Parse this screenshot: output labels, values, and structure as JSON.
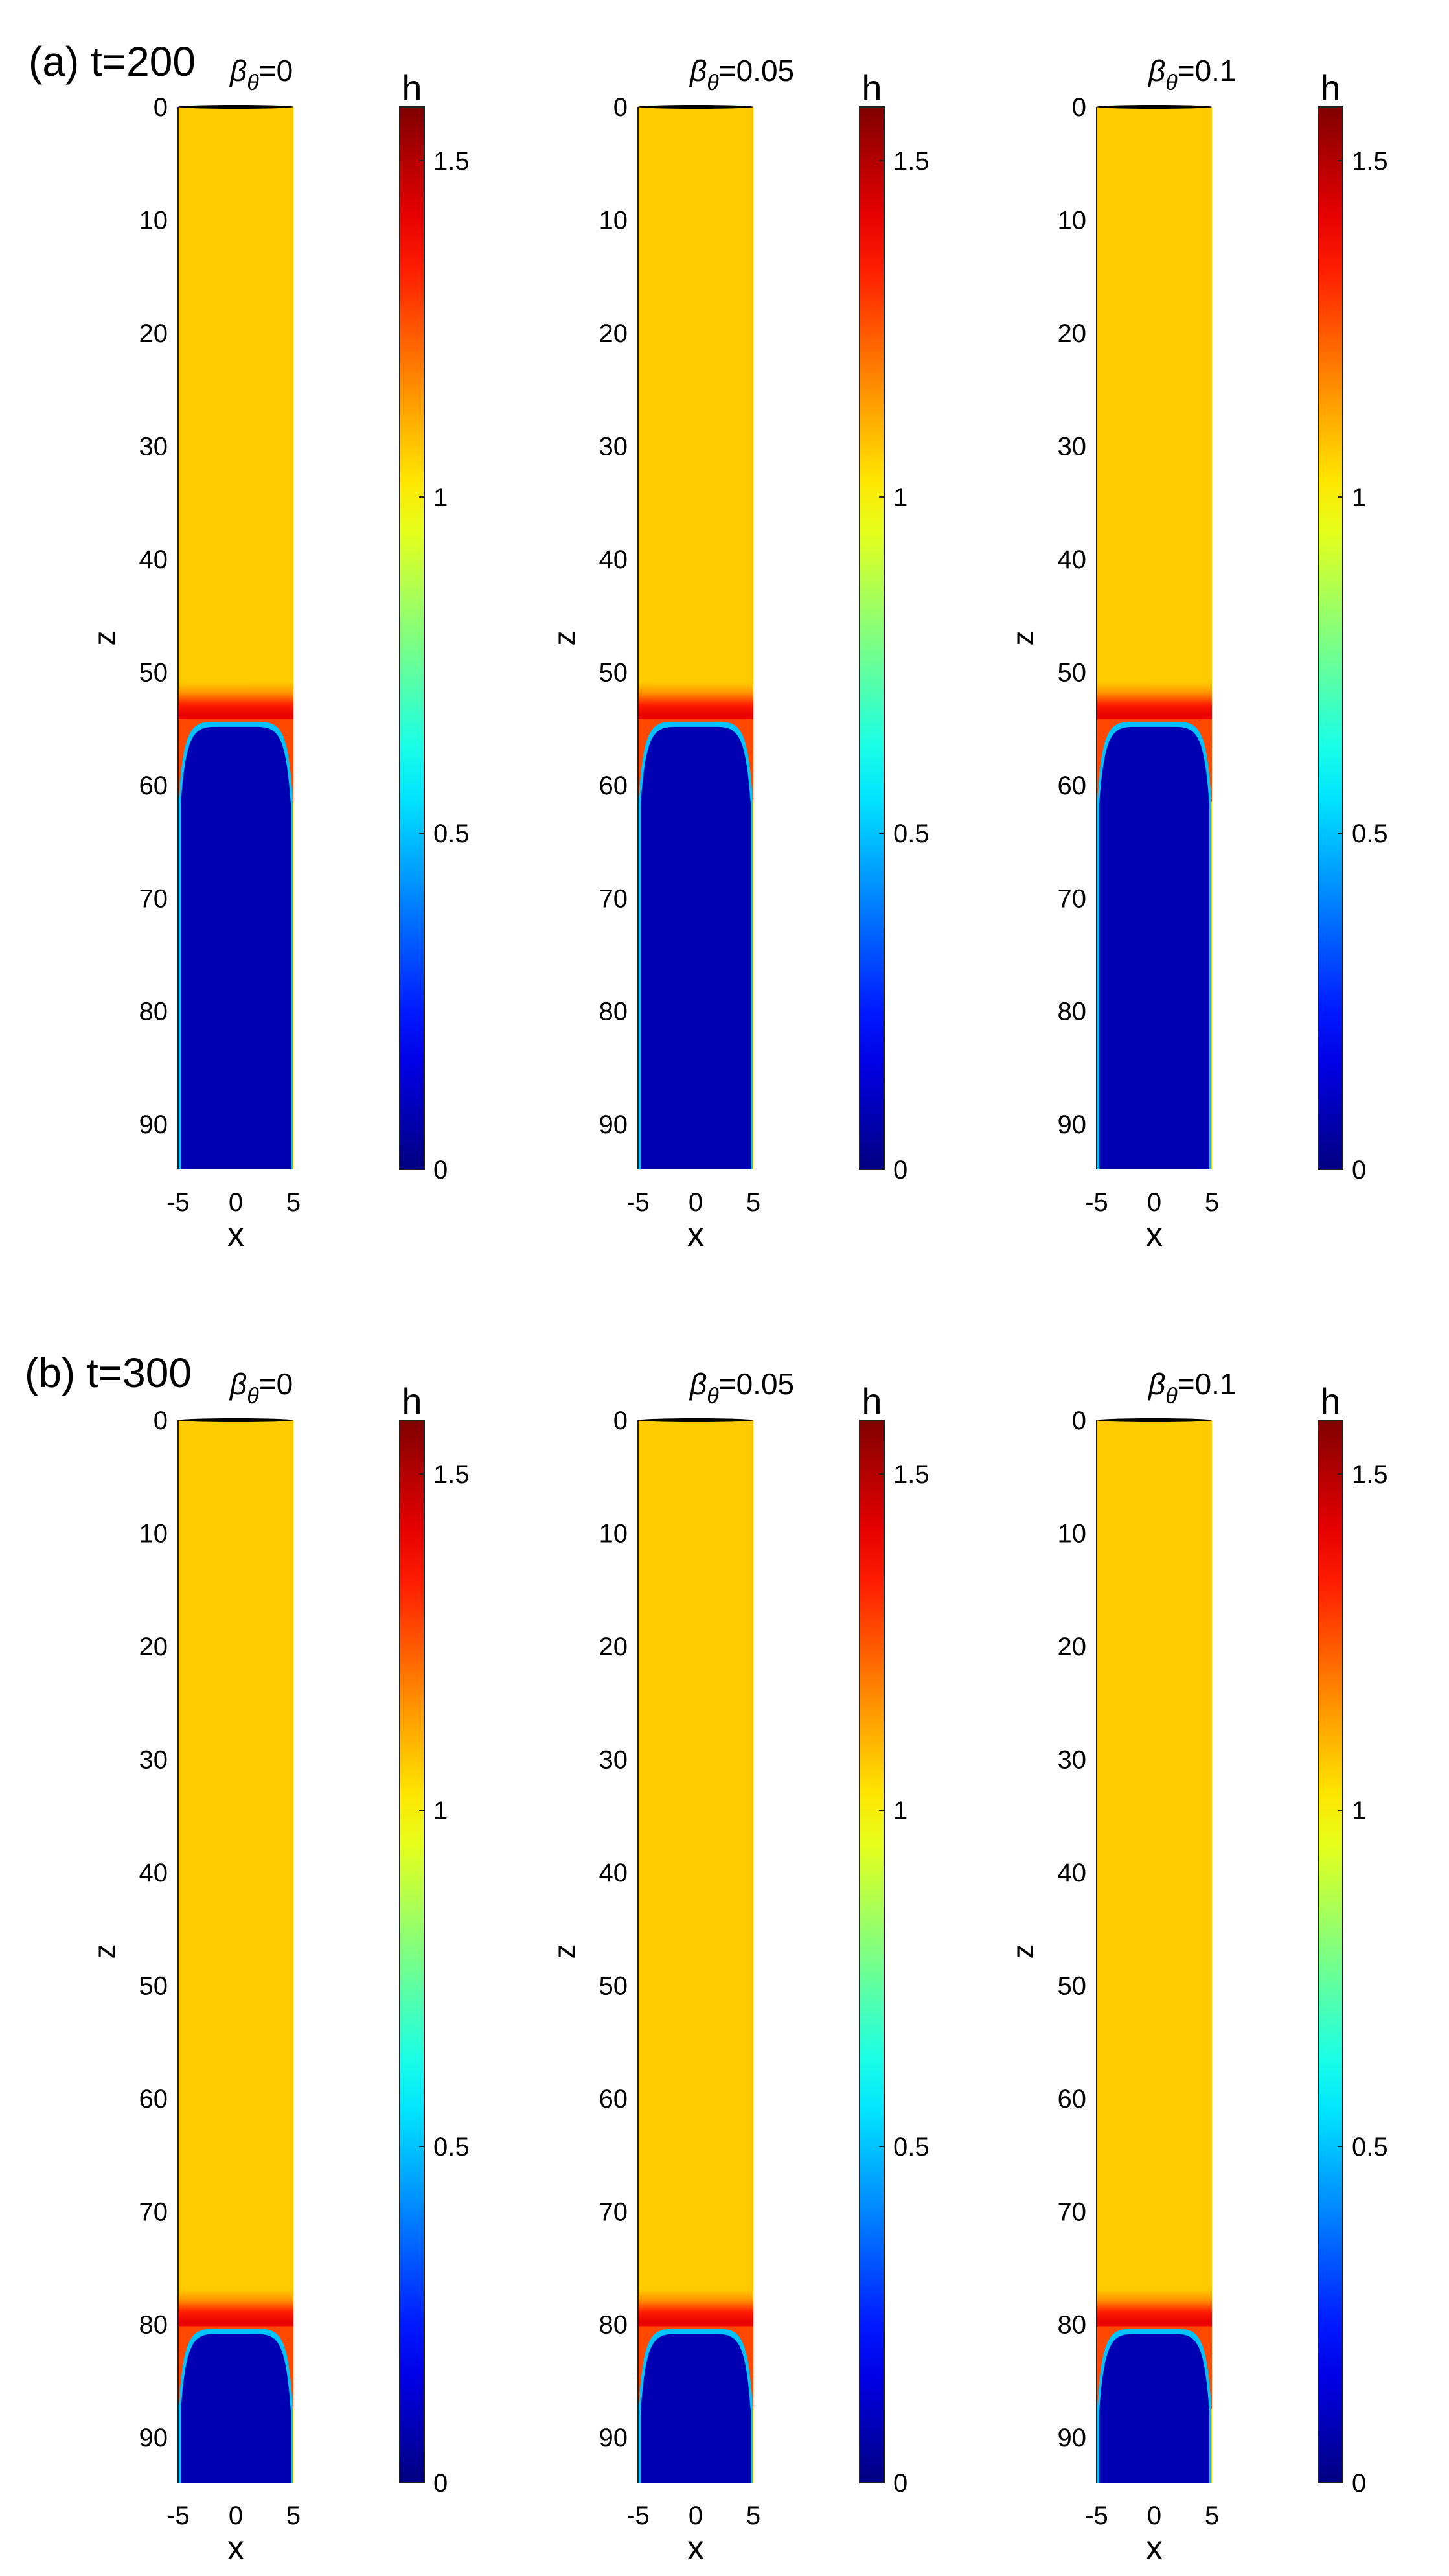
{
  "figure": {
    "rows": [
      {
        "label": "(a) t=200",
        "front_z": 54.5,
        "panels": [
          {
            "beta_label": "0"
          },
          {
            "beta_label": "0.05"
          },
          {
            "beta_label": "0.1"
          }
        ]
      },
      {
        "label": "(b) t=300",
        "front_z": 80.5,
        "panels": [
          {
            "beta_label": "0"
          },
          {
            "beta_label": "0.05"
          },
          {
            "beta_label": "0.1"
          }
        ]
      }
    ]
  },
  "chart_data": {
    "type": "heatmap",
    "xlabel": "x",
    "ylabel": "z",
    "colorbar_label": "h",
    "colormap": "jet",
    "xlim": [
      -5,
      5
    ],
    "ylim": [
      0,
      94
    ],
    "clim": [
      0,
      1.58
    ],
    "x_ticks": [
      "-5",
      "0",
      "5"
    ],
    "y_ticks": [
      "0",
      "10",
      "20",
      "30",
      "40",
      "50",
      "60",
      "70",
      "80",
      "90"
    ],
    "colorbar_ticks": [
      {
        "value": 0,
        "label": "0"
      },
      {
        "value": 0.5,
        "label": "0.5"
      },
      {
        "value": 1,
        "label": "1"
      },
      {
        "value": 1.5,
        "label": "1.5"
      }
    ],
    "fields": {
      "upstream_h": 1.07,
      "downstream_h": 0.0,
      "front_peak_h": 1.42
    }
  }
}
